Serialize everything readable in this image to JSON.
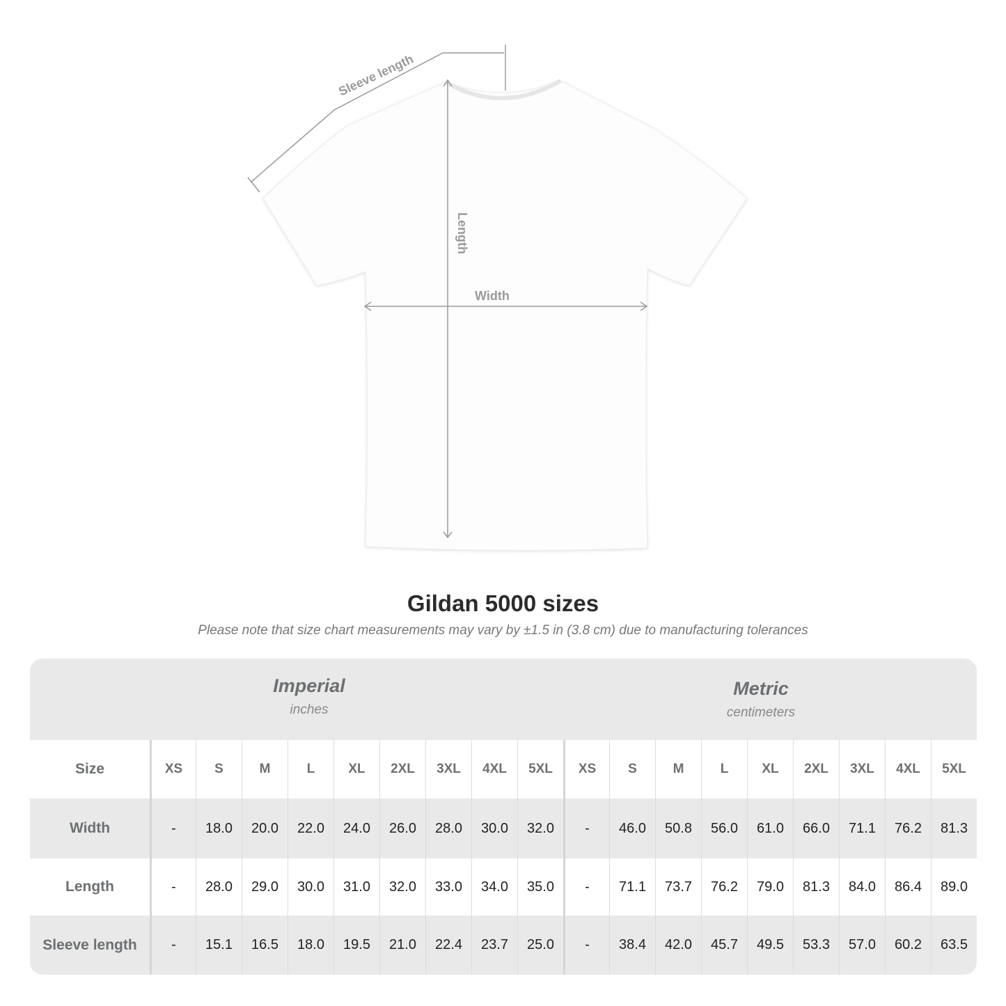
{
  "diagram": {
    "labels": {
      "sleeve": "Sleeve length",
      "length": "Length",
      "width": "Width"
    }
  },
  "title": "Gildan 5000 sizes",
  "note": "Please note that size chart measurements may vary by ±1.5 in (3.8 cm) due to manufacturing tolerances",
  "imperial": {
    "name": "Imperial",
    "unit": "inches"
  },
  "metric": {
    "name": "Metric",
    "unit": "centimeters"
  },
  "table": {
    "size_label": "Size",
    "sizes": [
      "XS",
      "S",
      "M",
      "L",
      "XL",
      "2XL",
      "3XL",
      "4XL",
      "5XL"
    ],
    "rows": [
      {
        "label": "Width",
        "imperial": [
          "-",
          "18.0",
          "20.0",
          "22.0",
          "24.0",
          "26.0",
          "28.0",
          "30.0",
          "32.0"
        ],
        "metric": [
          "-",
          "46.0",
          "50.8",
          "56.0",
          "61.0",
          "66.0",
          "71.1",
          "76.2",
          "81.3"
        ]
      },
      {
        "label": "Length",
        "imperial": [
          "-",
          "28.0",
          "29.0",
          "30.0",
          "31.0",
          "32.0",
          "33.0",
          "34.0",
          "35.0"
        ],
        "metric": [
          "-",
          "71.1",
          "73.7",
          "76.2",
          "79.0",
          "81.3",
          "84.0",
          "86.4",
          "89.0"
        ]
      },
      {
        "label": "Sleeve length",
        "imperial": [
          "-",
          "15.1",
          "16.5",
          "18.0",
          "19.5",
          "21.0",
          "22.4",
          "23.7",
          "25.0"
        ],
        "metric": [
          "-",
          "38.4",
          "42.0",
          "45.7",
          "49.5",
          "53.3",
          "57.0",
          "60.2",
          "63.5"
        ]
      }
    ]
  }
}
